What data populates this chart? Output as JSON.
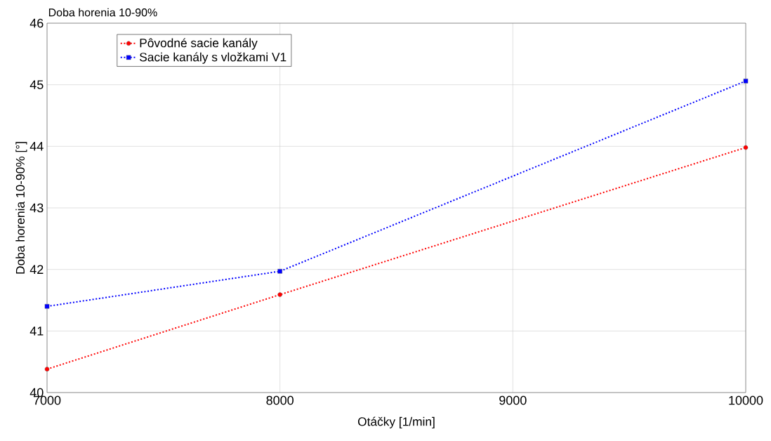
{
  "chart_data": {
    "type": "line",
    "title": "Doba horenia 10-90%",
    "xlabel": "Otáčky [1/min]",
    "ylabel": "Doba horenia 10-90% [°]",
    "x": [
      7000,
      8000,
      10000
    ],
    "series": [
      {
        "name": "Pôvodné sacie kanály",
        "color": "#ff0000",
        "marker": "circle",
        "values": [
          40.38,
          41.59,
          43.98
        ]
      },
      {
        "name": "Sacie kanály s vložkami V1",
        "color": "#0000ff",
        "marker": "square",
        "values": [
          41.4,
          41.97,
          45.06
        ]
      }
    ],
    "xlim": [
      7000,
      10000
    ],
    "xticks": [
      7000,
      8000,
      9000,
      10000
    ],
    "ylim": [
      40,
      46
    ],
    "yticks": [
      40,
      41,
      42,
      43,
      44,
      45,
      46
    ],
    "grid": true,
    "legend": "top left",
    "line_style": "dotted"
  }
}
